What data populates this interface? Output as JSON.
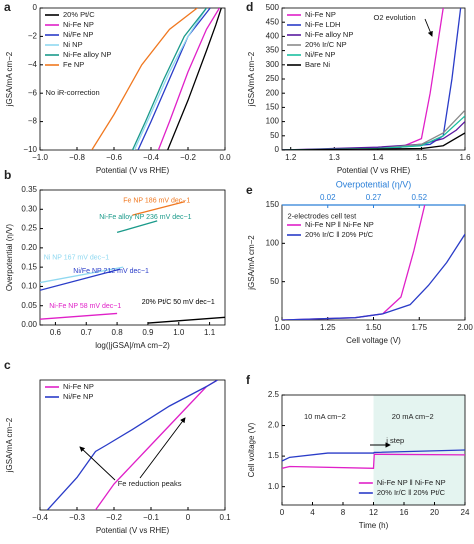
{
  "chart_data": [
    {
      "type": "line",
      "label": "a",
      "xlabel": "Potential (V vs RHE)",
      "ylabel": "jGSA/mA cm−2",
      "xlim": [
        -1,
        0
      ],
      "ylim": [
        -10,
        0
      ],
      "xticks": [
        {
          "value": -1,
          "label": "−1.0"
        },
        {
          "value": -0.8,
          "label": "−0.8"
        },
        {
          "value": -0.6,
          "label": "−0.6"
        },
        {
          "value": -0.4,
          "label": "−0.4"
        },
        {
          "value": -0.2,
          "label": "−0.2"
        },
        {
          "value": 0,
          "label": "0.0"
        }
      ],
      "yticks": [
        0,
        {
          "value": -2,
          "label": "−2"
        },
        {
          "value": -4,
          "label": "−4"
        },
        {
          "value": -6,
          "label": "−6"
        },
        {
          "value": -8,
          "label": "−8"
        },
        {
          "value": -10,
          "label": "−10"
        }
      ],
      "legend": "upper left",
      "annotations": [
        "No iR-correction"
      ],
      "series": [
        {
          "name": "20% Pt/C",
          "color": "#000000",
          "x": [
            -0.31,
            -0.2,
            -0.1,
            -0.05,
            -0.02
          ],
          "values": [
            -10,
            -6.5,
            -3,
            -1.2,
            0
          ]
        },
        {
          "name": "Ni-Fe NP",
          "color": "#e020c8",
          "x": [
            -0.36,
            -0.3,
            -0.2,
            -0.1,
            -0.03
          ],
          "values": [
            -10,
            -8,
            -4.5,
            -1.5,
            0
          ]
        },
        {
          "name": "Ni/Fe NP",
          "color": "#2a3cc8",
          "x": [
            -0.47,
            -0.4,
            -0.3,
            -0.2,
            -0.08
          ],
          "values": [
            -10,
            -8,
            -5,
            -2,
            0
          ]
        },
        {
          "name": "Ni NP",
          "color": "#8fd8f0",
          "x": [
            -0.49,
            -0.42,
            -0.3,
            -0.2,
            -0.1
          ],
          "values": [
            -10,
            -8,
            -4.5,
            -2,
            0
          ]
        },
        {
          "name": "Ni-Fe alloy NP",
          "color": "#1a9a8a",
          "x": [
            -0.5,
            -0.43,
            -0.33,
            -0.22,
            -0.1
          ],
          "values": [
            -10,
            -8,
            -5,
            -2,
            0
          ]
        },
        {
          "name": "Fe NP",
          "color": "#f07820",
          "x": [
            -0.72,
            -0.6,
            -0.45,
            -0.3,
            -0.15
          ],
          "values": [
            -10,
            -7.5,
            -4,
            -1.5,
            0
          ]
        }
      ]
    },
    {
      "type": "line",
      "label": "b",
      "xlabel": "log(|jGSA|/mA cm−2)",
      "ylabel": "Overpotential (η/V)",
      "xlim": [
        0.55,
        1.15
      ],
      "ylim": [
        0,
        0.35
      ],
      "xticks": [
        0.6,
        0.7,
        0.8,
        0.9,
        {
          "value": 1,
          "label": "1.0"
        },
        1.1
      ],
      "yticks": [
        {
          "value": 0,
          "label": "0.00"
        },
        0.05,
        {
          "value": 0.1,
          "label": "0.10"
        },
        0.15,
        {
          "value": 0.2,
          "label": "0.20"
        },
        0.25,
        {
          "value": 0.3,
          "label": "0.30"
        },
        0.35
      ],
      "series": [
        {
          "name": "Fe NP 186 mV dec−1",
          "color": "#f07820",
          "x": [
            0.85,
            1.02
          ],
          "values": [
            0.285,
            0.32
          ]
        },
        {
          "name": "Ni-Fe alloy NP 236 mV dec−1",
          "color": "#1a9a8a",
          "x": [
            0.8,
            0.93
          ],
          "values": [
            0.24,
            0.27
          ]
        },
        {
          "name": "Ni NP 167 mV dec−1",
          "color": "#8fd8f0",
          "x": [
            0.55,
            0.82
          ],
          "values": [
            0.11,
            0.15
          ]
        },
        {
          "name": "Ni/Fe NP 212 mV dec−1",
          "color": "#2a3cc8",
          "x": [
            0.55,
            0.81
          ],
          "values": [
            0.09,
            0.145
          ]
        },
        {
          "name": "Ni-Fe NP 58 mV dec−1",
          "color": "#e020c8",
          "x": [
            0.55,
            0.8
          ],
          "values": [
            0.015,
            0.03
          ]
        },
        {
          "name": "20% Pt/C 50 mV dec−1",
          "color": "#000000",
          "x": [
            0.9,
            1.15
          ],
          "values": [
            0.005,
            0.02
          ]
        }
      ]
    },
    {
      "type": "line",
      "label": "c",
      "xlabel": "Potential (V vs RHE)",
      "ylabel": "jGSA/mA cm−2",
      "xlim": [
        -0.4,
        0.1
      ],
      "ylim": [
        -10,
        0
      ],
      "xticks": [
        {
          "value": -0.4,
          "label": "−0.4"
        },
        {
          "value": -0.3,
          "label": "−0.3"
        },
        {
          "value": -0.2,
          "label": "−0.2"
        },
        {
          "value": -0.1,
          "label": "−0.1"
        },
        0,
        0.1
      ],
      "legend": "upper left",
      "annotations": [
        "Fe reduction peaks"
      ],
      "series": [
        {
          "name": "Ni-Fe NP",
          "color": "#e020c8",
          "x": [
            -0.25,
            -0.2,
            -0.1,
            0,
            0.05,
            0.08
          ],
          "values": [
            -10,
            -8,
            -5,
            -2,
            -0.5,
            0
          ]
        },
        {
          "name": "Ni/Fe NP",
          "color": "#2a3cc8",
          "x": [
            -0.38,
            -0.3,
            -0.25,
            -0.22,
            -0.15,
            -0.05,
            0.05,
            0.08
          ],
          "values": [
            -10,
            -7.5,
            -5.5,
            -5,
            -3.8,
            -2,
            -0.5,
            0
          ]
        }
      ]
    },
    {
      "type": "line",
      "label": "d",
      "xlabel": "Potential (V vs RHE)",
      "ylabel": "jGSA/mA cm−2",
      "xlim": [
        1.18,
        1.6
      ],
      "ylim": [
        0,
        500
      ],
      "xticks": [
        1.2,
        1.3,
        1.4,
        1.5,
        1.6
      ],
      "yticks": [
        0,
        50,
        100,
        150,
        200,
        250,
        300,
        350,
        400,
        450,
        500
      ],
      "legend": "upper left",
      "annotations": [
        "O2 evolution"
      ],
      "series": [
        {
          "name": "Ni-Fe NP",
          "color": "#e020c8",
          "x": [
            1.18,
            1.35,
            1.45,
            1.5,
            1.52,
            1.55
          ],
          "values": [
            0,
            2,
            8,
            40,
            200,
            500
          ]
        },
        {
          "name": "Ni-Fe LDH",
          "color": "#2a3cc8",
          "x": [
            1.18,
            1.38,
            1.45,
            1.52,
            1.55,
            1.57,
            1.59
          ],
          "values": [
            0,
            5,
            10,
            20,
            50,
            250,
            500
          ]
        },
        {
          "name": "Ni-Fe alloy NP",
          "color": "#5a1aa0",
          "x": [
            1.18,
            1.4,
            1.5,
            1.55,
            1.58,
            1.6
          ],
          "values": [
            0,
            10,
            20,
            40,
            70,
            100
          ]
        },
        {
          "name": "20% Ir/C NP",
          "color": "#8a8a8a",
          "x": [
            1.18,
            1.4,
            1.5,
            1.55,
            1.6
          ],
          "values": [
            0,
            5,
            20,
            60,
            140
          ]
        },
        {
          "name": "Ni/Fe NP",
          "color": "#1abfa0",
          "x": [
            1.18,
            1.4,
            1.5,
            1.55,
            1.6
          ],
          "values": [
            0,
            5,
            15,
            50,
            120
          ]
        },
        {
          "name": "Bare Ni",
          "color": "#000000",
          "x": [
            1.18,
            1.5,
            1.55,
            1.6
          ],
          "values": [
            0,
            5,
            15,
            60
          ]
        }
      ]
    },
    {
      "type": "line",
      "label": "e",
      "xlabel": "Cell voltage (V)",
      "ylabel": "jGSA/mA cm−2",
      "x2label": "Overpotential (η/V)",
      "xlim": [
        1,
        2
      ],
      "ylim": [
        0,
        150
      ],
      "x2lim": [
        -0.23,
        0.77
      ],
      "xticks": [
        {
          "value": 1,
          "label": "1.00"
        },
        1.25,
        {
          "value": 1.5,
          "label": "1.50"
        },
        1.75,
        {
          "value": 2,
          "label": "2.00"
        }
      ],
      "yticks": [
        0,
        50,
        100,
        150
      ],
      "x2ticks": [
        0.02,
        0.27,
        0.52
      ],
      "legend": "upper left",
      "annotations": [
        "2-electrodes cell test"
      ],
      "series": [
        {
          "name": "Ni-Fe NP ‖ Ni-Fe NP",
          "color": "#e020c8",
          "x": [
            1,
            1.4,
            1.55,
            1.65,
            1.72,
            1.78
          ],
          "values": [
            0,
            3,
            8,
            30,
            90,
            150
          ]
        },
        {
          "name": "20% Ir/C ‖ 20% Pt/C",
          "color": "#2a3cc8",
          "x": [
            1,
            1.4,
            1.55,
            1.7,
            1.8,
            1.9,
            2
          ],
          "values": [
            0,
            3,
            8,
            20,
            45,
            75,
            112
          ]
        }
      ]
    },
    {
      "type": "line",
      "label": "f",
      "xlabel": "Time (h)",
      "ylabel": "Cell voltage (V)",
      "xlim": [
        0,
        24
      ],
      "ylim": [
        0.7,
        2.5
      ],
      "xticks": [
        0,
        4,
        8,
        12,
        16,
        20,
        24
      ],
      "yticks": [
        {
          "value": 1,
          "label": "1.0"
        },
        1.5,
        {
          "value": 2,
          "label": "2.0"
        },
        2.5
      ],
      "legend": "lower right",
      "annotations": [
        "10 mA cm−2",
        "20 mA cm−2",
        "j step"
      ],
      "series": [
        {
          "name": "Ni-Fe NP ‖ Ni-Fe NP",
          "color": "#e020c8",
          "x": [
            0,
            1,
            12,
            12.1,
            24
          ],
          "values": [
            1.3,
            1.33,
            1.3,
            1.53,
            1.52
          ]
        },
        {
          "name": "20% Ir/C ‖ 20% Pt/C",
          "color": "#2a3cc8",
          "x": [
            0,
            1,
            6,
            12,
            12.1,
            24
          ],
          "values": [
            1.42,
            1.48,
            1.55,
            1.55,
            1.56,
            1.6
          ]
        }
      ]
    }
  ]
}
